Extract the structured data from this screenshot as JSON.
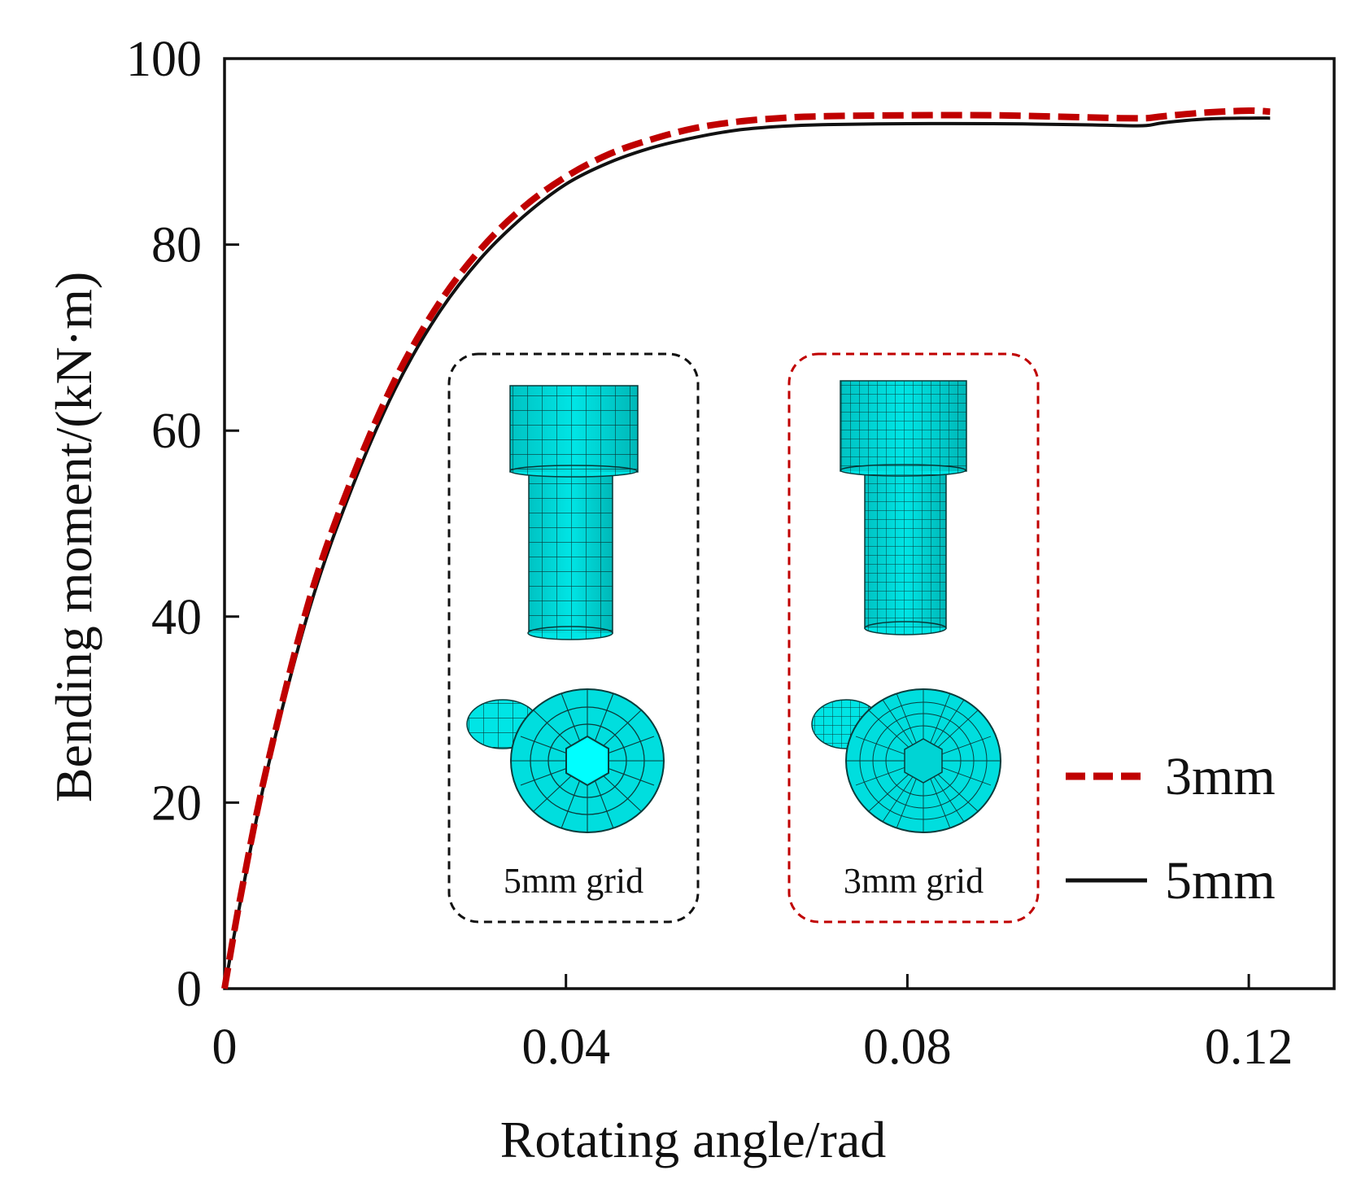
{
  "chart_data": {
    "type": "line",
    "title": "",
    "xlabel": "Rotating angle/rad",
    "ylabel": "Bending moment/(kN·m)",
    "xlim": [
      0,
      0.13
    ],
    "ylim": [
      0,
      100
    ],
    "xticks": [
      0,
      0.04,
      0.08,
      0.12
    ],
    "xtick_labels": [
      "0",
      "0.04",
      "0.08",
      "0.12"
    ],
    "yticks": [
      0,
      20,
      40,
      60,
      80,
      100
    ],
    "ytick_labels": [
      "0",
      "20",
      "40",
      "60",
      "80",
      "100"
    ],
    "grid": false,
    "legend_position": "bottom-right",
    "series": [
      {
        "name": "3mm",
        "color": "#c00000",
        "style": "dashed",
        "x": [
          0,
          0.002,
          0.005,
          0.01,
          0.015,
          0.02,
          0.025,
          0.03,
          0.035,
          0.04,
          0.045,
          0.05,
          0.055,
          0.06,
          0.065,
          0.07,
          0.08,
          0.09,
          0.1,
          0.105,
          0.108,
          0.11,
          0.115,
          0.12,
          0.1225
        ],
        "y": [
          0,
          10.5,
          24,
          42,
          55,
          65.5,
          73.5,
          79.5,
          84,
          87.3,
          89.7,
          91.3,
          92.5,
          93.2,
          93.6,
          93.8,
          93.9,
          93.9,
          93.7,
          93.6,
          93.6,
          93.8,
          94.2,
          94.4,
          94.3
        ]
      },
      {
        "name": "5mm",
        "color": "#111111",
        "style": "solid",
        "x": [
          0,
          0.002,
          0.005,
          0.01,
          0.015,
          0.02,
          0.025,
          0.03,
          0.035,
          0.04,
          0.045,
          0.05,
          0.055,
          0.06,
          0.065,
          0.07,
          0.08,
          0.09,
          0.1,
          0.105,
          0.108,
          0.11,
          0.115,
          0.12,
          0.1225
        ],
        "y": [
          0,
          10,
          23.5,
          41,
          54,
          64.5,
          72.5,
          78.5,
          83,
          86.5,
          88.8,
          90.4,
          91.5,
          92.3,
          92.7,
          92.9,
          93,
          93,
          92.9,
          92.8,
          92.8,
          93.1,
          93.5,
          93.6,
          93.6
        ]
      }
    ],
    "insets": [
      {
        "label": "5mm grid",
        "border_color": "#111111"
      },
      {
        "label": "3mm grid",
        "border_color": "#c00000"
      }
    ]
  },
  "colors": {
    "mesh_fill": "#00e5e5",
    "mesh_line": "#0a3c3c",
    "axis": "#111111"
  }
}
